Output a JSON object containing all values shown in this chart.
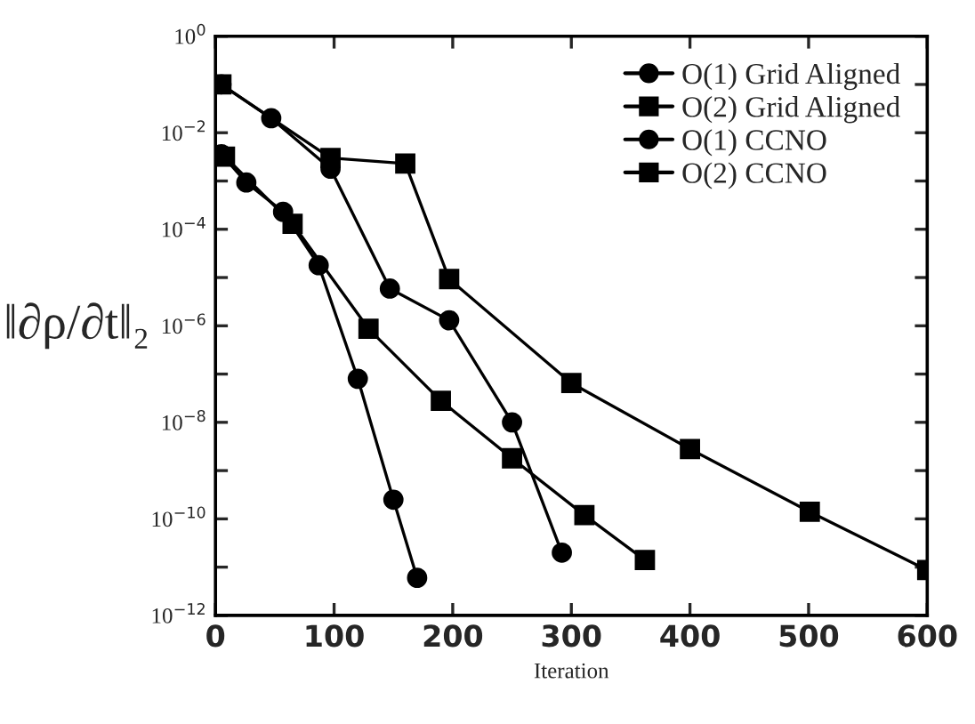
{
  "chart_data": {
    "type": "line",
    "xlabel": "Iteration",
    "ylabel": "‖∂ρ/∂t‖₂",
    "log": "y",
    "xlim": [
      0,
      600
    ],
    "xticks": [
      0,
      100,
      200,
      300,
      400,
      500,
      600
    ],
    "ylim": [
      1e-12,
      1
    ],
    "yticks": [
      {
        "value": 1e-12,
        "label": "10$^{−12}$"
      },
      {
        "value": 1e-11,
        "label": null
      },
      {
        "value": 1e-10,
        "label": "10$^{−10}$"
      },
      {
        "value": 1e-09,
        "label": null
      },
      {
        "value": 1e-08,
        "label": "10$^{−8}$"
      },
      {
        "value": 1e-07,
        "label": null
      },
      {
        "value": 1e-06,
        "label": "10$^{−6}$"
      },
      {
        "value": 1e-05,
        "label": null
      },
      {
        "value": 0.0001,
        "label": "10$^{−4}$"
      },
      {
        "value": 0.001,
        "label": null
      },
      {
        "value": 0.01,
        "label": "10$^{−2}$"
      },
      {
        "value": 0.1,
        "label": null
      },
      {
        "value": 1,
        "label": "10$^{0}$"
      }
    ],
    "legend": "top right",
    "grid": false,
    "series": [
      {
        "name": "O(1) Grid Aligned",
        "color": "#000000",
        "marker": "circle",
        "x": [
          5,
          26,
          57,
          87,
          120,
          150,
          170
        ],
        "values": [
          0.0036,
          0.00093,
          0.00023,
          1.8e-05,
          8e-08,
          2.5e-10,
          6e-12
        ]
      },
      {
        "name": "O(2) Grid Aligned",
        "color": "#000000",
        "marker": "square",
        "x": [
          8,
          65,
          129,
          190,
          250,
          311,
          362
        ],
        "values": [
          0.0032,
          0.00013,
          8.7e-07,
          2.8e-08,
          1.8e-09,
          1.2e-10,
          1.4e-11
        ]
      },
      {
        "name": "O(1) CCNO",
        "color": "#000000",
        "marker": "circle",
        "x": [
          5,
          47,
          97,
          147,
          197,
          250,
          292
        ],
        "values": [
          0.1,
          0.02,
          0.0018,
          5.9e-06,
          1.3e-06,
          1e-08,
          2e-11
        ]
      },
      {
        "name": "O(2) CCNO",
        "color": "#000000",
        "marker": "square",
        "x": [
          5,
          97,
          160,
          197,
          300,
          400,
          501,
          600
        ],
        "values": [
          0.1,
          0.003,
          0.0023,
          9.3e-06,
          6.5e-08,
          2.8e-09,
          1.4e-10,
          8.7e-12
        ]
      }
    ]
  }
}
